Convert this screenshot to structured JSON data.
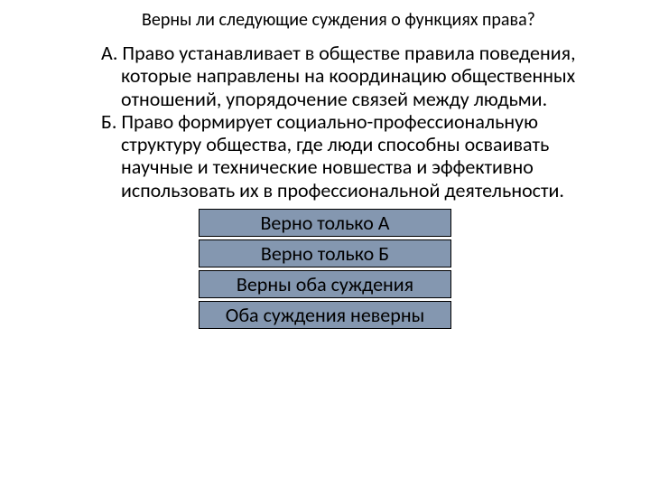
{
  "title": "Верны ли следующие суждения о функциях права?",
  "statements": {
    "a": {
      "label": "А. ",
      "text": "Право устанавливает в обществе правила поведения, которые направлены на координацию общественных отношений, упорядочение связей между людьми."
    },
    "b": {
      "label": "Б. ",
      "text": "Право формирует социально-профессиональную структуру общества, где люди способны осваивать научные и технические новшества и эффективно использовать их в профессиональной деятельности."
    }
  },
  "answers": [
    "Верно только А",
    "Верно только Б",
    "Верны оба суждения",
    "Оба суждения неверны"
  ],
  "style": {
    "answer_bg": "#8497b0",
    "answer_border": "#000000",
    "text_color": "#000000",
    "bg_color": "#ffffff",
    "title_fontsize": 20,
    "body_fontsize": 22,
    "answer_fontsize": 22
  }
}
